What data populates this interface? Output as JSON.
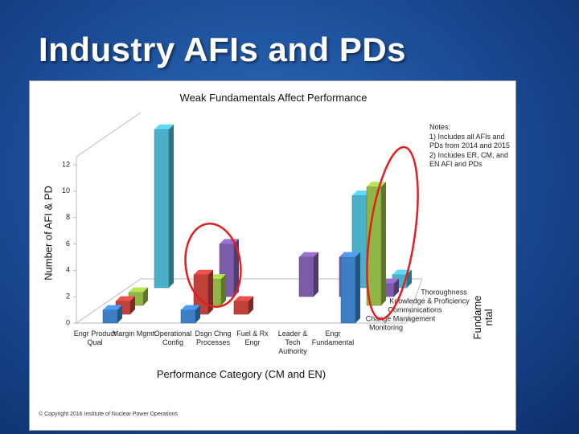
{
  "slide_title": "Industry AFIs and PDs",
  "copyright": "© Copyright 2016 Institute of Nuclear Power Operations",
  "notes": [
    "Notes:",
    "1) Includes all AFIs and PDs from 2014 and 2015",
    "2) Includes ER, CM, and EN AFI and PDs"
  ],
  "chart_data": {
    "type": "bar3d",
    "title": "Weak Fundamentals Affect Performance",
    "x_label": "Performance Category (CM and EN)",
    "y_label": "Number of AFI & PD",
    "side_label_lines": [
      "Fundame",
      "ntal"
    ],
    "categories": [
      "Engr Product Qual",
      "Margin Mgmt",
      "Operational Config",
      "Dsgn Chng Processes",
      "Fuel & Rx Engr",
      "Leader & Tech Authority",
      "Engr Fundamental"
    ],
    "series": [
      {
        "name": "Monitoring",
        "color": "#3d7fc4",
        "values": [
          1,
          0,
          1,
          0,
          0,
          0,
          5
        ]
      },
      {
        "name": "Change Management",
        "color": "#c0403a",
        "values": [
          1,
          0,
          3,
          1,
          0,
          0,
          0
        ]
      },
      {
        "name": "Communications",
        "color": "#92b645",
        "values": [
          1,
          0,
          2,
          0,
          0,
          0,
          9
        ]
      },
      {
        "name": "Knowledge & Proficiency",
        "color": "#7c5ba8",
        "values": [
          0,
          0,
          4,
          0,
          3,
          3,
          1
        ]
      },
      {
        "name": "Thoroughness",
        "color": "#4aafc9",
        "values": [
          12,
          0,
          0,
          0,
          0,
          7,
          1
        ]
      }
    ],
    "ylim": [
      0,
      12
    ],
    "yticks": [
      0,
      2,
      4,
      6,
      8,
      10,
      12
    ]
  }
}
